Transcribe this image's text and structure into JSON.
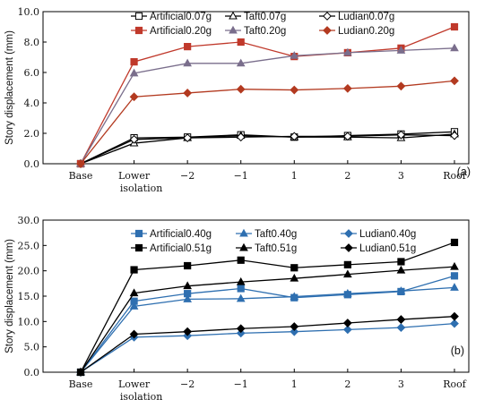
{
  "chart_data": [
    {
      "type": "line",
      "panel_label": "(a)",
      "ylabel": "Story displacement (mm)",
      "xlabel": "",
      "categories": [
        "Base",
        "Lower\nisolation",
        "−2",
        "−1",
        "1",
        "2",
        "3",
        "Roof"
      ],
      "y_ticks": [
        "0.0",
        "2.0",
        "4.0",
        "6.0",
        "8.0",
        "10.0"
      ],
      "ylim": [
        0,
        10
      ],
      "grid": false,
      "legend_position": "top",
      "series": [
        {
          "name": "Artificial0.07g",
          "color": "#000000",
          "marker": "square-open",
          "values": [
            0,
            1.7,
            1.75,
            1.9,
            1.75,
            1.85,
            1.95,
            2.1
          ]
        },
        {
          "name": "Taft0.07g",
          "color": "#000000",
          "marker": "triangle-open",
          "values": [
            0,
            1.35,
            1.7,
            1.85,
            1.75,
            1.75,
            1.7,
            1.95
          ]
        },
        {
          "name": "Ludian0.07g",
          "color": "#000000",
          "marker": "diamond-open",
          "values": [
            0,
            1.6,
            1.7,
            1.75,
            1.8,
            1.8,
            1.9,
            1.85
          ]
        },
        {
          "name": "Artificial0.20g",
          "color": "#c0392b",
          "marker": "square",
          "values": [
            0,
            6.7,
            7.7,
            8.0,
            7.05,
            7.3,
            7.6,
            9.0
          ]
        },
        {
          "name": "Taft0.20g",
          "color": "#7a6e8c",
          "marker": "triangle",
          "values": [
            0,
            5.95,
            6.6,
            6.6,
            7.1,
            7.3,
            7.45,
            7.6
          ]
        },
        {
          "name": "Ludian0.20g",
          "color": "#b33a20",
          "marker": "diamond",
          "values": [
            0,
            4.4,
            4.65,
            4.9,
            4.85,
            4.95,
            5.1,
            5.45
          ]
        }
      ]
    },
    {
      "type": "line",
      "panel_label": "(b)",
      "ylabel": "Story displacement (mm)",
      "xlabel": "",
      "categories": [
        "Base",
        "Lower\nisolation",
        "−2",
        "−1",
        "1",
        "2",
        "3",
        "Roof"
      ],
      "y_ticks": [
        "0.0",
        "5.0",
        "10.0",
        "15.0",
        "20.0",
        "25.0",
        "30.0"
      ],
      "ylim": [
        0,
        30
      ],
      "grid": false,
      "legend_position": "top",
      "series": [
        {
          "name": "Artificial0.40g",
          "color": "#2e6fb0",
          "marker": "square",
          "values": [
            0,
            14.0,
            15.5,
            16.5,
            14.7,
            15.3,
            15.9,
            19.0
          ]
        },
        {
          "name": "Taft0.40g",
          "color": "#2e6fb0",
          "marker": "triangle",
          "values": [
            0,
            13.0,
            14.4,
            14.5,
            14.9,
            15.5,
            16.0,
            16.7
          ]
        },
        {
          "name": "Ludian0.40g",
          "color": "#2e6fb0",
          "marker": "diamond",
          "values": [
            0,
            6.9,
            7.2,
            7.7,
            8.0,
            8.4,
            8.8,
            9.6
          ]
        },
        {
          "name": "Artificial0.51g",
          "color": "#000000",
          "marker": "square",
          "values": [
            0,
            20.2,
            21.0,
            22.1,
            20.6,
            21.2,
            21.8,
            25.6
          ]
        },
        {
          "name": "Taft0.51g",
          "color": "#000000",
          "marker": "triangle",
          "values": [
            0,
            15.6,
            17.0,
            17.8,
            18.5,
            19.3,
            20.1,
            20.8
          ]
        },
        {
          "name": "Ludian0.51g",
          "color": "#000000",
          "marker": "diamond",
          "values": [
            0,
            7.5,
            8.0,
            8.6,
            9.0,
            9.7,
            10.4,
            11.0
          ]
        }
      ]
    }
  ]
}
